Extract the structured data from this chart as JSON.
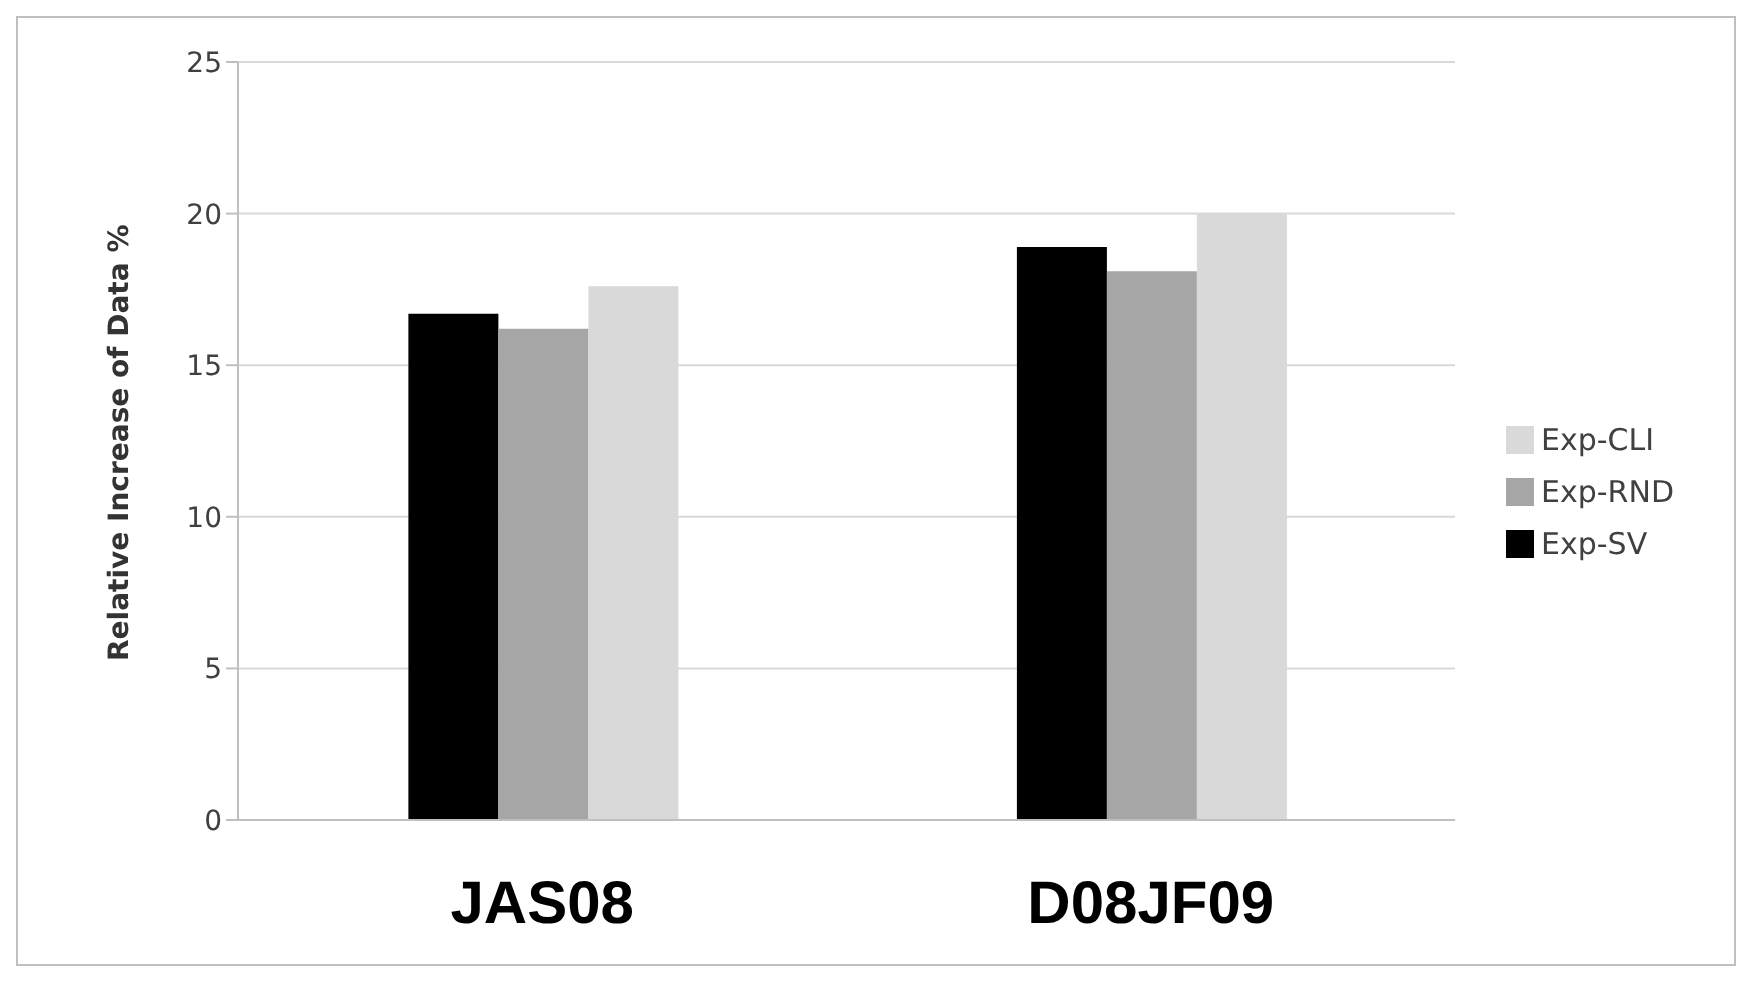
{
  "chart_data": {
    "type": "bar",
    "ylabel": "Relative Increase of Data %",
    "categories": [
      "JAS08",
      "D08JF09"
    ],
    "series": [
      {
        "name": "Exp-SV",
        "color": "#000000",
        "values": [
          16.7,
          18.9
        ]
      },
      {
        "name": "Exp-RND",
        "color": "#a6a6a6",
        "values": [
          16.2,
          18.1
        ]
      },
      {
        "name": "Exp-CLI",
        "color": "#d9d9d9",
        "values": [
          17.6,
          20.0
        ]
      }
    ],
    "ylim": [
      0,
      25
    ],
    "yticks": [
      0,
      5,
      10,
      15,
      20,
      25
    ],
    "grid": "y",
    "legend": "right"
  }
}
